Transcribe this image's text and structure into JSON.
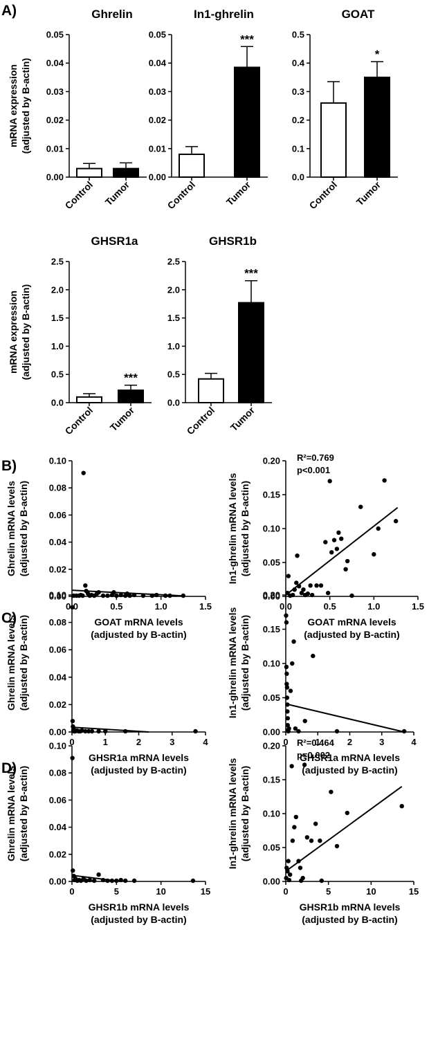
{
  "panel_labels": {
    "A": "A)",
    "B": "B)",
    "C": "C)",
    "D": "D)"
  },
  "labels": {
    "bar_y_axis": [
      "mRNA expression",
      "(adjusted by B-actin)"
    ],
    "ghrelin_y_axis": [
      "Ghrelin mRNA levels",
      "(adjusted by B-actin)"
    ],
    "in1_y_axis": [
      "In1-ghrelin mRNA levels",
      "(adjusted by B-actin)"
    ]
  },
  "chart_data": [
    {
      "id": "bar-ghrelin",
      "type": "bar",
      "title": "Ghrelin",
      "categories": [
        "Control",
        "Tumor"
      ],
      "values": [
        0.003,
        0.003
      ],
      "errors": [
        0.0018,
        0.002
      ],
      "fills": [
        "#ffffff",
        "#000000"
      ],
      "significance": [
        "",
        ""
      ],
      "ylim": [
        0,
        0.05
      ],
      "yticks": [
        0.0,
        0.01,
        0.02,
        0.03,
        0.04,
        0.05
      ],
      "yticklabels": [
        "0.00",
        "0.01",
        "0.02",
        "0.03",
        "0.04",
        "0.05"
      ]
    },
    {
      "id": "bar-in1",
      "type": "bar",
      "title": "In1-ghrelin",
      "categories": [
        "Control",
        "Tumor"
      ],
      "values": [
        0.008,
        0.0385
      ],
      "errors": [
        0.0027,
        0.0073
      ],
      "fills": [
        "#ffffff",
        "#000000"
      ],
      "significance": [
        "",
        "***"
      ],
      "ylim": [
        0,
        0.05
      ],
      "yticks": [
        0.0,
        0.01,
        0.02,
        0.03,
        0.04,
        0.05
      ],
      "yticklabels": [
        "0.00",
        "0.01",
        "0.02",
        "0.03",
        "0.04",
        "0.05"
      ]
    },
    {
      "id": "bar-goat",
      "type": "bar",
      "title": "GOAT",
      "categories": [
        "Control",
        "Tumor"
      ],
      "values": [
        0.26,
        0.35
      ],
      "errors": [
        0.075,
        0.055
      ],
      "fills": [
        "#ffffff",
        "#000000"
      ],
      "significance": [
        "",
        "*"
      ],
      "ylim": [
        0,
        0.5
      ],
      "yticks": [
        0.0,
        0.1,
        0.2,
        0.3,
        0.4,
        0.5
      ],
      "yticklabels": [
        "0.0",
        "0.1",
        "0.2",
        "0.3",
        "0.4",
        "0.5"
      ]
    },
    {
      "id": "bar-ghsr1a",
      "type": "bar",
      "title": "GHSR1a",
      "categories": [
        "Control",
        "Tumor"
      ],
      "values": [
        0.1,
        0.22
      ],
      "errors": [
        0.06,
        0.09
      ],
      "fills": [
        "#ffffff",
        "#000000"
      ],
      "significance": [
        "",
        "***"
      ],
      "ylim": [
        0,
        2.5
      ],
      "yticks": [
        0.0,
        0.5,
        1.0,
        1.5,
        2.0,
        2.5
      ],
      "yticklabels": [
        "0.0",
        "0.5",
        "1.0",
        "1.5",
        "2.0",
        "2.5"
      ]
    },
    {
      "id": "bar-ghsr1b",
      "type": "bar",
      "title": "GHSR1b",
      "categories": [
        "Control",
        "Tumor"
      ],
      "values": [
        0.42,
        1.77
      ],
      "errors": [
        0.1,
        0.39
      ],
      "fills": [
        "#ffffff",
        "#000000"
      ],
      "significance": [
        "",
        "***"
      ],
      "ylim": [
        0,
        2.5
      ],
      "yticks": [
        0.0,
        0.5,
        1.0,
        1.5,
        2.0,
        2.5
      ],
      "yticklabels": [
        "0.0",
        "0.5",
        "1.0",
        "1.5",
        "2.0",
        "2.5"
      ]
    },
    {
      "id": "sc-goat-ghrelin",
      "type": "scatter",
      "title": "",
      "xlabel": [
        "GOAT mRNA levels",
        "(adjusted by B-actin)"
      ],
      "xlim": [
        0,
        1.5
      ],
      "xticks": [
        0,
        0.5,
        1,
        1.5
      ],
      "xticklabels": [
        "0.0",
        "0.5",
        "1.0",
        "1.5"
      ],
      "ylim": [
        0,
        0.1
      ],
      "yticks": [
        0,
        0.02,
        0.04,
        0.06,
        0.08,
        0.1
      ],
      "yticklabels": [
        "0.00",
        "0.02",
        "0.04",
        "0.06",
        "0.08",
        "0.10"
      ],
      "points": [
        [
          0.02,
          0
        ],
        [
          0.05,
          0
        ],
        [
          0.08,
          0.0005
        ],
        [
          0.1,
          0.001
        ],
        [
          0.12,
          0.0005
        ],
        [
          0.13,
          0.091
        ],
        [
          0.15,
          0.008
        ],
        [
          0.16,
          0.004
        ],
        [
          0.2,
          0
        ],
        [
          0.22,
          0.001
        ],
        [
          0.25,
          0.0005
        ],
        [
          0.28,
          0.002
        ],
        [
          0.3,
          0.003
        ],
        [
          0.35,
          0.0005
        ],
        [
          0.4,
          0
        ],
        [
          0.45,
          0.001
        ],
        [
          0.47,
          0.003
        ],
        [
          0.5,
          0.0005
        ],
        [
          0.55,
          0.001
        ],
        [
          0.6,
          0.0005
        ],
        [
          0.65,
          0
        ],
        [
          0.7,
          0.001
        ],
        [
          0.8,
          0.0005
        ],
        [
          0.9,
          0
        ],
        [
          0.95,
          0.001
        ],
        [
          1.05,
          0
        ],
        [
          1.1,
          0.0005
        ],
        [
          1.25,
          0.0005
        ],
        [
          0.18,
          0.002
        ],
        [
          0.62,
          0.002
        ]
      ],
      "fit": [
        [
          0,
          0.0045
        ],
        [
          1.27,
          0.0003
        ]
      ],
      "annotation": []
    },
    {
      "id": "sc-goat-in1",
      "type": "scatter",
      "title": "",
      "xlabel": [
        "GOAT mRNA levels",
        "(adjusted by B-actin)"
      ],
      "xlim": [
        0,
        1.5
      ],
      "xticks": [
        0,
        0.5,
        1,
        1.5
      ],
      "xticklabels": [
        "0.0",
        "0.5",
        "1.0",
        "1.5"
      ],
      "ylim": [
        0,
        0.2
      ],
      "yticks": [
        0,
        0.05,
        0.1,
        0.15,
        0.2
      ],
      "yticklabels": [
        "0.00",
        "0.05",
        "0.10",
        "0.15",
        "0.20"
      ],
      "points": [
        [
          0.02,
          0.005
        ],
        [
          0.03,
          0.03
        ],
        [
          0.05,
          0
        ],
        [
          0.08,
          0.002
        ],
        [
          0.1,
          0.01
        ],
        [
          0.12,
          0.02
        ],
        [
          0.13,
          0.06
        ],
        [
          0.15,
          0.015
        ],
        [
          0.18,
          0.005
        ],
        [
          0.2,
          0.01
        ],
        [
          0.22,
          0.002
        ],
        [
          0.28,
          0.016
        ],
        [
          0.3,
          0.002
        ],
        [
          0.35,
          0.016
        ],
        [
          0.4,
          0.016
        ],
        [
          0.45,
          0.08
        ],
        [
          0.48,
          0.005
        ],
        [
          0.5,
          0.17
        ],
        [
          0.52,
          0.065
        ],
        [
          0.55,
          0.083
        ],
        [
          0.58,
          0.07
        ],
        [
          0.6,
          0.094
        ],
        [
          0.63,
          0.085
        ],
        [
          0.68,
          0.04
        ],
        [
          0.7,
          0.052
        ],
        [
          0.75,
          0.001
        ],
        [
          0.85,
          0.132
        ],
        [
          1.0,
          0.062
        ],
        [
          1.05,
          0.1
        ],
        [
          1.12,
          0.171
        ],
        [
          1.25,
          0.111
        ],
        [
          0.25,
          0.004
        ]
      ],
      "fit": [
        [
          0,
          0.002
        ],
        [
          1.27,
          0.131
        ]
      ],
      "annotation": [
        "R²=0.769",
        "p<0.001"
      ]
    },
    {
      "id": "sc-ghsr1a-ghrelin",
      "type": "scatter",
      "title": "",
      "xlabel": [
        "GHSR1a mRNA levels",
        "(adjusted by B-actin)"
      ],
      "xlim": [
        0,
        4
      ],
      "xticks": [
        0,
        1,
        2,
        3,
        4
      ],
      "xticklabels": [
        "0",
        "1",
        "2",
        "3",
        "4"
      ],
      "ylim": [
        0,
        0.1
      ],
      "yticks": [
        0,
        0.02,
        0.04,
        0.06,
        0.08,
        0.1
      ],
      "yticklabels": [
        "0.00",
        "0.02",
        "0.04",
        "0.06",
        "0.08",
        "0.10"
      ],
      "points": [
        [
          0.01,
          0.091
        ],
        [
          0.02,
          0.008
        ],
        [
          0.03,
          0.004
        ],
        [
          0.05,
          0.002
        ],
        [
          0.08,
          0
        ],
        [
          0.1,
          0.0005
        ],
        [
          0.15,
          0.001
        ],
        [
          0.2,
          0
        ],
        [
          0.25,
          0.0005
        ],
        [
          0.3,
          0.001
        ],
        [
          0.4,
          0
        ],
        [
          0.5,
          0.0005
        ],
        [
          0.6,
          0
        ],
        [
          0.8,
          0
        ],
        [
          1.0,
          0.0005
        ],
        [
          1.6,
          0
        ],
        [
          3.7,
          0
        ],
        [
          0.04,
          0.001
        ],
        [
          0.06,
          0
        ]
      ],
      "fit": [
        [
          0,
          0.0035
        ],
        [
          2.3,
          0
        ]
      ],
      "annotation": []
    },
    {
      "id": "sc-ghsr1a-in1",
      "type": "scatter",
      "title": "",
      "xlabel": [
        "GHSR1a mRNA levels",
        "(adjusted by B-actin)"
      ],
      "xlim": [
        0,
        4
      ],
      "xticks": [
        0,
        1,
        2,
        3,
        4
      ],
      "xticklabels": [
        "0",
        "1",
        "2",
        "3",
        "4"
      ],
      "ylim": [
        0,
        0.2
      ],
      "yticks": [
        0,
        0.05,
        0.1,
        0.15,
        0.2
      ],
      "yticklabels": [
        "0.00",
        "0.05",
        "0.10",
        "0.15",
        "0.20"
      ],
      "points": [
        [
          0.01,
          0.17
        ],
        [
          0.02,
          0.16
        ],
        [
          0.02,
          0.095
        ],
        [
          0.03,
          0.085
        ],
        [
          0.03,
          0.07
        ],
        [
          0.04,
          0.065
        ],
        [
          0.04,
          0.05
        ],
        [
          0.05,
          0.04
        ],
        [
          0.05,
          0.03
        ],
        [
          0.06,
          0.02
        ],
        [
          0.06,
          0.01
        ],
        [
          0.07,
          0.003
        ],
        [
          0.08,
          0
        ],
        [
          0.1,
          0.005
        ],
        [
          0.15,
          0.06
        ],
        [
          0.2,
          0.1
        ],
        [
          0.25,
          0.132
        ],
        [
          0.3,
          0.005
        ],
        [
          0.4,
          0.001
        ],
        [
          0.6,
          0.016
        ],
        [
          0.85,
          0.111
        ],
        [
          1.6,
          0
        ],
        [
          3.7,
          0
        ]
      ],
      "fit": [
        [
          0,
          0.041
        ],
        [
          3.7,
          0
        ]
      ],
      "annotation": []
    },
    {
      "id": "sc-ghsr1b-ghrelin",
      "type": "scatter",
      "title": "",
      "xlabel": [
        "GHSR1b mRNA levels",
        "(adjusted by B-actin)"
      ],
      "xlim": [
        0,
        15
      ],
      "xticks": [
        0,
        5,
        10,
        15
      ],
      "xticklabels": [
        "0",
        "5",
        "10",
        "15"
      ],
      "ylim": [
        0,
        0.1
      ],
      "yticks": [
        0,
        0.02,
        0.04,
        0.06,
        0.08,
        0.1
      ],
      "yticklabels": [
        "0.00",
        "0.02",
        "0.04",
        "0.06",
        "0.08",
        "0.10"
      ],
      "points": [
        [
          0.05,
          0.091
        ],
        [
          0.1,
          0.008
        ],
        [
          0.2,
          0.004
        ],
        [
          0.4,
          0.002
        ],
        [
          0.6,
          0
        ],
        [
          0.8,
          0.001
        ],
        [
          1.0,
          0.0005
        ],
        [
          1.3,
          0.002
        ],
        [
          1.6,
          0
        ],
        [
          2.0,
          0.001
        ],
        [
          2.5,
          0.0005
        ],
        [
          3.0,
          0.005
        ],
        [
          3.5,
          0.001
        ],
        [
          4.0,
          0
        ],
        [
          4.5,
          0.0005
        ],
        [
          5.0,
          0
        ],
        [
          5.5,
          0.001
        ],
        [
          6.0,
          0
        ],
        [
          7.0,
          0
        ],
        [
          13.6,
          0
        ],
        [
          0.3,
          0.001
        ]
      ],
      "fit": [
        [
          0,
          0.0045
        ],
        [
          5.5,
          0
        ]
      ],
      "annotation": []
    },
    {
      "id": "sc-ghsr1b-in1",
      "type": "scatter",
      "title": "",
      "xlabel": [
        "GHSR1b mRNA levels",
        "(adjusted by B-actin)"
      ],
      "xlim": [
        0,
        15
      ],
      "xticks": [
        0,
        5,
        10,
        15
      ],
      "xticklabels": [
        "0",
        "5",
        "10",
        "15"
      ],
      "ylim": [
        0,
        0.2
      ],
      "yticks": [
        0,
        0.05,
        0.1,
        0.15,
        0.2
      ],
      "yticklabels": [
        "0.00",
        "0.05",
        "0.10",
        "0.15",
        "0.20"
      ],
      "points": [
        [
          0.05,
          0.005
        ],
        [
          0.1,
          0.02
        ],
        [
          0.2,
          0.015
        ],
        [
          0.3,
          0.03
        ],
        [
          0.5,
          0.01
        ],
        [
          0.7,
          0.17
        ],
        [
          0.8,
          0.06
        ],
        [
          1.0,
          0.08
        ],
        [
          1.2,
          0.095
        ],
        [
          1.5,
          0.03
        ],
        [
          1.7,
          0.02
        ],
        [
          2.0,
          0.005
        ],
        [
          2.2,
          0.172
        ],
        [
          2.5,
          0.065
        ],
        [
          3.0,
          0.06
        ],
        [
          3.5,
          0.085
        ],
        [
          4.0,
          0.06
        ],
        [
          4.2,
          0.001
        ],
        [
          5.3,
          0.132
        ],
        [
          6.0,
          0.052
        ],
        [
          7.2,
          0.101
        ],
        [
          13.6,
          0.111
        ],
        [
          0.4,
          0.002
        ],
        [
          1.8,
          0.0
        ]
      ],
      "fit": [
        [
          0,
          0.015
        ],
        [
          13.6,
          0.14
        ]
      ],
      "annotation": [
        "R²=0.464",
        "p=0.002"
      ]
    }
  ]
}
